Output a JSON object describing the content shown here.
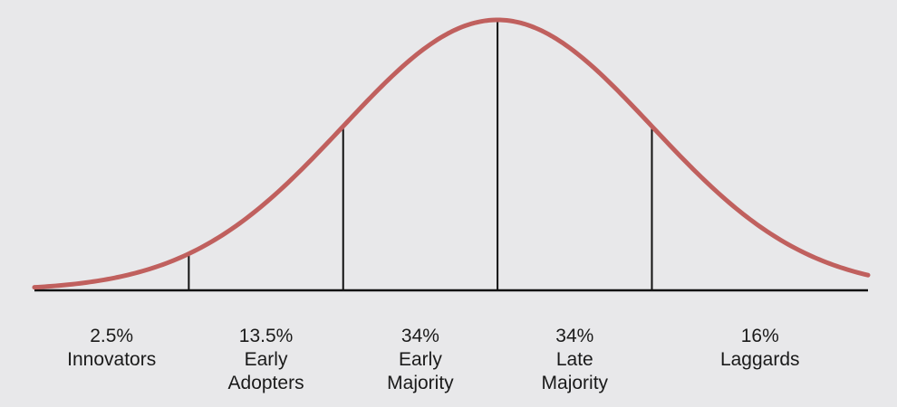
{
  "chart_data": {
    "type": "area",
    "title": "",
    "xlabel": "",
    "ylabel": "",
    "distribution": "normal",
    "mean": 0,
    "sd": 1,
    "xlim": [
      -3,
      2.4
    ],
    "boundaries": [
      -2,
      -1,
      0,
      1
    ],
    "segments": [
      {
        "percent": "2.5%",
        "lines": [
          "Innovators"
        ]
      },
      {
        "percent": "13.5%",
        "lines": [
          "Early",
          "Adopters"
        ]
      },
      {
        "percent": "34%",
        "lines": [
          "Early",
          "Majority"
        ]
      },
      {
        "percent": "34%",
        "lines": [
          "Late",
          "Majority"
        ]
      },
      {
        "percent": "16%",
        "lines": [
          "Laggards"
        ]
      }
    ]
  },
  "colors": {
    "background": "#e8e8ea",
    "curve": "#c0605e",
    "lines": "#111111",
    "text": "#1a1a1a"
  }
}
